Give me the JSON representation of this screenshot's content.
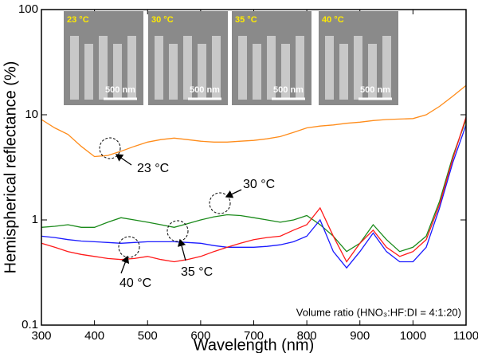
{
  "chart_data": {
    "type": "line",
    "x_label": "Wavelength (nm)",
    "y_label": "Hemispherical reflectance (%)",
    "x": [
      300,
      325,
      350,
      375,
      400,
      425,
      450,
      475,
      500,
      525,
      550,
      575,
      600,
      625,
      650,
      675,
      700,
      725,
      750,
      775,
      800,
      825,
      850,
      875,
      900,
      925,
      950,
      975,
      1000,
      1025,
      1050,
      1075,
      1100
    ],
    "xlim": [
      300,
      1100
    ],
    "xticks": [
      300,
      400,
      500,
      600,
      700,
      800,
      900,
      1000,
      1100
    ],
    "ylim": [
      0.1,
      100
    ],
    "yticks": [
      0.1,
      1,
      10,
      100
    ],
    "log_y": true,
    "series": [
      {
        "name": "23 °C",
        "color": "#ff8c1a",
        "values": [
          9,
          7.5,
          6.5,
          5,
          4,
          4.1,
          4.5,
          5,
          5.5,
          5.8,
          6,
          5.8,
          5.6,
          5.5,
          5.5,
          5.6,
          5.7,
          5.9,
          6.2,
          6.8,
          7.5,
          7.8,
          8,
          8.3,
          8.5,
          8.8,
          9,
          9.1,
          9.2,
          10,
          12,
          15,
          19
        ]
      },
      {
        "name": "30 °C",
        "color": "#1a8a1a",
        "values": [
          0.85,
          0.87,
          0.9,
          0.85,
          0.85,
          0.95,
          1.05,
          1,
          0.95,
          0.9,
          0.85,
          0.92,
          1,
          1.07,
          1.12,
          1.1,
          1.05,
          1,
          0.95,
          1,
          1.1,
          0.9,
          0.7,
          0.5,
          0.6,
          0.9,
          0.65,
          0.5,
          0.55,
          0.7,
          1.5,
          4,
          9
        ]
      },
      {
        "name": "35 °C",
        "color": "#1a1aff",
        "values": [
          0.7,
          0.68,
          0.65,
          0.63,
          0.62,
          0.61,
          0.6,
          0.61,
          0.62,
          0.62,
          0.62,
          0.61,
          0.6,
          0.57,
          0.55,
          0.55,
          0.55,
          0.56,
          0.58,
          0.62,
          0.7,
          1,
          0.5,
          0.35,
          0.5,
          0.75,
          0.5,
          0.4,
          0.4,
          0.55,
          1.3,
          3.5,
          8
        ]
      },
      {
        "name": "40 °C",
        "color": "#ff1a1a",
        "values": [
          0.6,
          0.55,
          0.5,
          0.47,
          0.45,
          0.43,
          0.42,
          0.43,
          0.45,
          0.42,
          0.4,
          0.42,
          0.45,
          0.5,
          0.55,
          0.6,
          0.65,
          0.68,
          0.7,
          0.8,
          0.9,
          1.3,
          0.7,
          0.4,
          0.6,
          0.8,
          0.55,
          0.45,
          0.5,
          0.65,
          1.4,
          3.8,
          9.5
        ]
      }
    ],
    "note": "Volume ratio (HNO₃:HF:DI = 4:1:20)",
    "insets": [
      {
        "label": "23 °C",
        "scale": "500 nm"
      },
      {
        "label": "30 °C",
        "scale": "500 nm"
      },
      {
        "label": "35 °C",
        "scale": "500 nm"
      },
      {
        "label": "40 °C",
        "scale": "500 nm"
      }
    ]
  }
}
